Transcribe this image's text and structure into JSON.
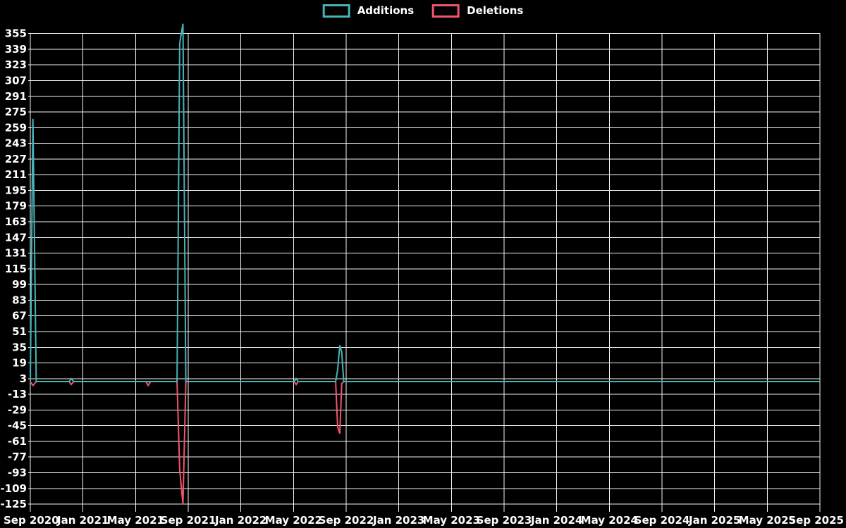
{
  "page": {
    "background_color": "#000000",
    "text_color": "#ffffff",
    "gridline_color": "#f2f2f2"
  },
  "legend": {
    "position": "top-center",
    "items": [
      {
        "label": "Additions",
        "color": "#47b4b8"
      },
      {
        "label": "Deletions",
        "color": "#f2556f"
      }
    ]
  },
  "chart_data": {
    "type": "line",
    "title": "",
    "xlabel": "",
    "ylabel": "",
    "grid": true,
    "legend_position": "top-center",
    "x_axis": {
      "tick_labels": [
        "Sep 2020",
        "Jan 2021",
        "May 2021",
        "Sep 2021",
        "Jan 2022",
        "May 2022",
        "Sep 2022",
        "Jan 2023",
        "May 2023",
        "Sep 2023",
        "Jan 2024",
        "May 2024",
        "Sep 2024",
        "Jan 2025",
        "May 2025",
        "Sep 2025"
      ],
      "months_per_tick": 4,
      "range_months": [
        0,
        60
      ]
    },
    "y_axis": {
      "tick_labels": [
        355,
        339,
        323,
        307,
        291,
        275,
        259,
        243,
        227,
        211,
        195,
        179,
        163,
        147,
        131,
        115,
        99,
        83,
        67,
        51,
        35,
        19,
        3,
        -13,
        -29,
        -45,
        -61,
        -77,
        -93,
        -109,
        -125
      ],
      "min": -125,
      "max": 355,
      "step": 16
    },
    "series": [
      {
        "name": "Additions",
        "color": "#47b4b8",
        "points_m_v": [
          [
            0,
            0
          ],
          [
            0.2,
            268
          ],
          [
            0.45,
            0
          ],
          [
            2.95,
            0
          ],
          [
            3.1,
            3
          ],
          [
            3.3,
            0
          ],
          [
            8.8,
            0
          ],
          [
            8.95,
            0
          ],
          [
            9.15,
            0
          ],
          [
            11.15,
            0
          ],
          [
            11.35,
            345
          ],
          [
            11.6,
            365
          ],
          [
            11.82,
            0
          ],
          [
            20.05,
            0
          ],
          [
            20.2,
            3
          ],
          [
            20.35,
            0
          ],
          [
            23.2,
            0
          ],
          [
            23.35,
            12
          ],
          [
            23.52,
            37
          ],
          [
            23.66,
            30
          ],
          [
            23.82,
            0
          ],
          [
            60,
            0
          ]
        ]
      },
      {
        "name": "Deletions",
        "color": "#f2556f",
        "points_m_v": [
          [
            0,
            0
          ],
          [
            0.2,
            -4
          ],
          [
            0.45,
            0
          ],
          [
            2.95,
            0
          ],
          [
            3.1,
            -3
          ],
          [
            3.3,
            0
          ],
          [
            8.8,
            0
          ],
          [
            8.95,
            -4
          ],
          [
            9.15,
            0
          ],
          [
            11.15,
            0
          ],
          [
            11.35,
            -90
          ],
          [
            11.6,
            -125
          ],
          [
            11.82,
            0
          ],
          [
            20.05,
            0
          ],
          [
            20.2,
            -3
          ],
          [
            20.35,
            0
          ],
          [
            23.2,
            0
          ],
          [
            23.35,
            -46
          ],
          [
            23.52,
            -53
          ],
          [
            23.66,
            -2
          ],
          [
            23.82,
            0
          ],
          [
            60,
            0
          ]
        ]
      }
    ]
  }
}
